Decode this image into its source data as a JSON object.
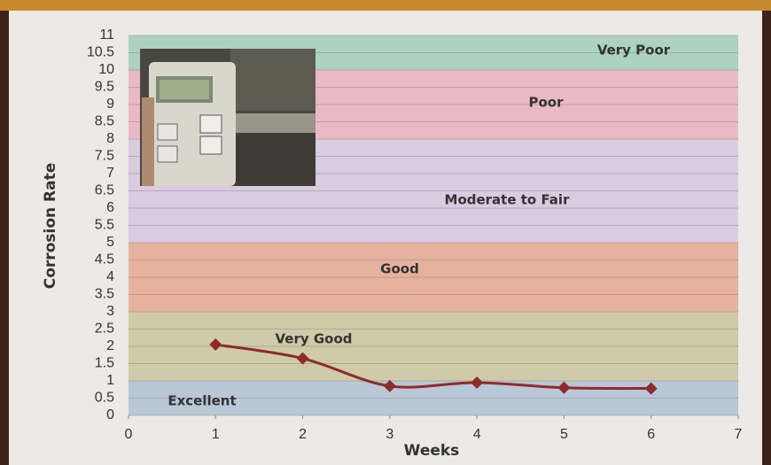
{
  "chart_data": {
    "type": "line",
    "x_label": "Weeks",
    "y_label": "Corrosion Rate",
    "xlim": [
      0,
      7
    ],
    "xticks": [
      0,
      1,
      2,
      3,
      4,
      5,
      6,
      7
    ],
    "ylim": [
      0,
      11
    ],
    "yticks": [
      0,
      0.5,
      1,
      1.5,
      2,
      2.5,
      3,
      3.5,
      4,
      4.5,
      5,
      5.5,
      6,
      6.5,
      7,
      7.5,
      8,
      8.5,
      9,
      9.5,
      10,
      10.5,
      11
    ],
    "grid": true,
    "bands": [
      {
        "label": "Excellent",
        "from": 0,
        "to": 1,
        "color": "#b9c8d6"
      },
      {
        "label": "Very Good",
        "from": 1,
        "to": 3,
        "color": "#cfcba9"
      },
      {
        "label": "Good",
        "from": 3,
        "to": 5,
        "color": "#e6b29d"
      },
      {
        "label": "Moderate to Fair",
        "from": 5,
        "to": 8,
        "color": "#d9cbe0"
      },
      {
        "label": "Poor",
        "from": 8,
        "to": 10,
        "color": "#e9bac6"
      },
      {
        "label": "Very Poor",
        "from": 10,
        "to": 11,
        "color": "#acd2c0"
      }
    ],
    "x": [
      1,
      2,
      3,
      4,
      5,
      6
    ],
    "series": [
      {
        "name": "Corrosion Rate",
        "color": "#8e2b2b",
        "values": [
          2.05,
          1.65,
          0.85,
          0.95,
          0.8,
          0.78
        ]
      }
    ]
  }
}
